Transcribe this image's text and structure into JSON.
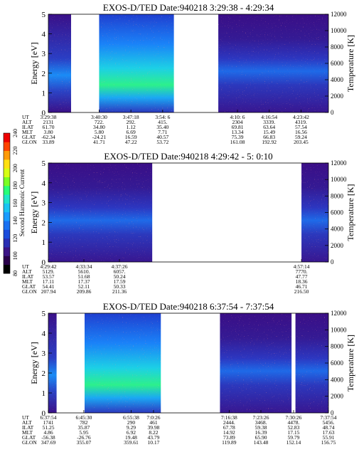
{
  "colorbar": {
    "label": "Second Harmonic Current",
    "ticks": [
      "80",
      "100",
      "120",
      "140",
      "160",
      "180",
      "200",
      "220",
      "240"
    ],
    "colors": [
      "#000000",
      "#2a004a",
      "#3c1486",
      "#2b2fb4",
      "#1c4cdc",
      "#1a72f2",
      "#1a9cff",
      "#1bc4f2",
      "#20e6c8",
      "#28ff78",
      "#7aff24",
      "#d6ff14",
      "#ffe010",
      "#ff9a08",
      "#ff4400",
      "#ee0000"
    ]
  },
  "chart_data": [
    {
      "type": "heatmap",
      "title": "EXOS-D/TED   Date:940218   3:29:38 - 4:29:34",
      "ylabel": "Energy [eV]",
      "ylim": [
        0,
        5
      ],
      "yticks": [
        "0",
        "1",
        "2",
        "3",
        "4",
        "5"
      ],
      "y2label": "Temperature [K]",
      "y2lim": [
        0,
        12000
      ],
      "y2ticks": [
        "0",
        "2000",
        "4000",
        "6000",
        "8000",
        "10000",
        "12000"
      ],
      "time_range": [
        "3:29:38",
        "4:29:34"
      ],
      "data_intervals": [
        {
          "start": "3:29:38",
          "end": "3:34:30",
          "level": "mixed"
        },
        {
          "start": "3:40:30",
          "end": "3:56:30",
          "level": "high"
        },
        {
          "start": "4:06:00",
          "end": "4:29:34",
          "level": "low"
        }
      ],
      "rows": [
        {
          "name": "UT",
          "values": [
            "3:29:38",
            "3:40:30",
            "3:47:18",
            "3:54: 6",
            "4:10: 6",
            "4:16:54",
            "4:23:42"
          ]
        },
        {
          "name": "ALT",
          "values": [
            "2131",
            "722.",
            "292.",
            "415.",
            "2304",
            "3339.",
            "4319."
          ]
        },
        {
          "name": "ILAT",
          "values": [
            "61.70",
            "34.80",
            "1.12",
            "35.40",
            "69.81",
            "63.64",
            "57.54"
          ]
        },
        {
          "name": "MLT",
          "values": [
            "3.80",
            "5.80",
            "6.69",
            "7.71",
            "13.34",
            "15.49",
            "16.56"
          ]
        },
        {
          "name": "GLAT",
          "values": [
            "-62.34",
            "-24.21",
            "16.59",
            "40.57",
            "75.39",
            "66.83",
            "59.24"
          ]
        },
        {
          "name": "GLON",
          "values": [
            "33.89",
            "41.71",
            "47.22",
            "53.72",
            "161.08",
            "192.92",
            "203.45"
          ]
        }
      ]
    },
    {
      "type": "heatmap",
      "title": "EXOS-D/TED   Date:940218   4:29:42 - 5: 0:10",
      "ylabel": "Energy [eV]",
      "ylim": [
        0,
        5
      ],
      "yticks": [
        "0",
        "1",
        "2",
        "3",
        "4",
        "5"
      ],
      "y2label": "Temperature [K]",
      "y2lim": [
        0,
        12000
      ],
      "y2ticks": [
        "0",
        "2000",
        "4000",
        "6000",
        "8000",
        "10000",
        "12000"
      ],
      "time_range": [
        "4:29:42",
        "5:00:10"
      ],
      "data_intervals": [
        {
          "start": "4:29:42",
          "end": "4:41:00",
          "level": "low"
        },
        {
          "start": "4:57:14",
          "end": "5:00:10",
          "level": "low"
        }
      ],
      "rows": [
        {
          "name": "UT",
          "values": [
            "4:29:42",
            "4:33:34",
            "4:37:26",
            "4:57:14"
          ]
        },
        {
          "name": "ALT",
          "values": [
            "5129.",
            "5610.",
            "6057.",
            "7770."
          ]
        },
        {
          "name": "ILAT",
          "values": [
            "53.57",
            "51.68",
            "50.24",
            "47.77"
          ]
        },
        {
          "name": "MLT",
          "values": [
            "17.11",
            "17.37",
            "17.59",
            "18.36"
          ]
        },
        {
          "name": "GLAT",
          "values": [
            "54.41",
            "52.11",
            "50.33",
            "46.71"
          ]
        },
        {
          "name": "GLON",
          "values": [
            "207.94",
            "209.86",
            "211.36",
            "216.50"
          ]
        }
      ]
    },
    {
      "type": "heatmap",
      "title": "EXOS-D/TED   Date:940218   6:37:54 - 7:37:54",
      "ylabel": "Energy [eV]",
      "ylim": [
        0,
        5
      ],
      "yticks": [
        "0",
        "1",
        "2",
        "3",
        "4",
        "5"
      ],
      "y2label": "Temperature [K]",
      "y2lim": [
        0,
        12000
      ],
      "y2ticks": [
        "0",
        "2000",
        "4000",
        "6000",
        "8000",
        "10000",
        "12000"
      ],
      "time_range": [
        "6:37:54",
        "7:37:54"
      ],
      "data_intervals": [
        {
          "start": "6:37:54",
          "end": "6:39:40",
          "level": "mixed"
        },
        {
          "start": "6:45:40",
          "end": "7:02:00",
          "level": "high"
        },
        {
          "start": "7:14:40",
          "end": "7:30:00",
          "level": "low"
        },
        {
          "start": "7:30:50",
          "end": "7:37:54",
          "level": "low"
        }
      ],
      "rows": [
        {
          "name": "UT",
          "values": [
            "6:37:54",
            "6:45:30",
            "6:55:38",
            "7:0:26",
            "7:16:38",
            "7:23:26",
            "7:30:26",
            "7:37:54"
          ]
        },
        {
          "name": "ALT",
          "values": [
            "1741",
            "782",
            "290",
            "461",
            "2444.",
            "3468.",
            "4478.",
            "5456."
          ]
        },
        {
          "name": "ILAT",
          "values": [
            "51.25",
            "35.87",
            "9.29",
            "39.98",
            "67.78",
            "59.38",
            "52.83",
            "48.74"
          ]
        },
        {
          "name": "MLT",
          "values": [
            "4.86",
            "5.95",
            "6.92",
            "8.22",
            "14.92",
            "16.39",
            "17.15",
            "17.63"
          ]
        },
        {
          "name": "GLAT",
          "values": [
            "-56.38",
            "-26.76",
            "19.48",
            "43.79",
            "73.89",
            "65.90",
            "59.79",
            "55.91"
          ]
        },
        {
          "name": "GLON",
          "values": [
            "347.69",
            "355.07",
            "359.61",
            "10.17",
            "119.89",
            "143.48",
            "152.14",
            "156.75"
          ]
        }
      ]
    }
  ]
}
